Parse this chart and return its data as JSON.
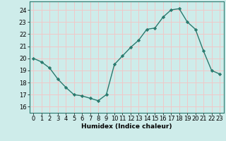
{
  "x": [
    0,
    1,
    2,
    3,
    4,
    5,
    6,
    7,
    8,
    9,
    10,
    11,
    12,
    13,
    14,
    15,
    16,
    17,
    18,
    19,
    20,
    21,
    22,
    23
  ],
  "y": [
    20.0,
    19.7,
    19.2,
    18.3,
    17.6,
    17.0,
    16.9,
    16.7,
    16.5,
    17.0,
    19.5,
    20.2,
    20.9,
    21.5,
    22.4,
    22.5,
    23.4,
    24.0,
    24.1,
    23.0,
    22.4,
    20.6,
    19.0,
    18.7
  ],
  "line_color": "#2a7a6e",
  "marker": "D",
  "markersize": 2.2,
  "linewidth": 1.0,
  "bg_color": "#ceecea",
  "grid_color": "#f0c8c8",
  "xlabel": "Humidex (Indice chaleur)",
  "ylim": [
    15.5,
    24.7
  ],
  "xlim": [
    -0.5,
    23.5
  ],
  "yticks": [
    16,
    17,
    18,
    19,
    20,
    21,
    22,
    23,
    24
  ],
  "xticks": [
    0,
    1,
    2,
    3,
    4,
    5,
    6,
    7,
    8,
    9,
    10,
    11,
    12,
    13,
    14,
    15,
    16,
    17,
    18,
    19,
    20,
    21,
    22,
    23
  ],
  "xlabel_fontsize": 6.5,
  "tick_fontsize": 6.0
}
